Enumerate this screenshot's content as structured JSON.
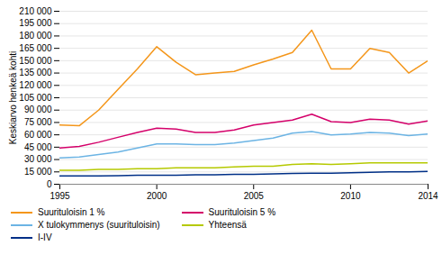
{
  "chart_data": {
    "type": "line",
    "x": [
      1995,
      1996,
      1997,
      1998,
      1999,
      2000,
      2001,
      2002,
      2003,
      2004,
      2005,
      2006,
      2007,
      2008,
      2009,
      2010,
      2011,
      2012,
      2013,
      2014
    ],
    "series": [
      {
        "name": "Suurituloisin 1 %",
        "color": "#F4961A",
        "values": [
          72000,
          71000,
          90000,
          115000,
          140000,
          167000,
          148000,
          133000,
          135000,
          137000,
          145000,
          152000,
          160000,
          187000,
          140000,
          140000,
          165000,
          160000,
          135000,
          150000
        ]
      },
      {
        "name": "Suurituloisin 5 %",
        "color": "#D4006A",
        "values": [
          44000,
          46000,
          51000,
          57000,
          63000,
          68000,
          67000,
          63000,
          63000,
          66000,
          72000,
          75000,
          78000,
          85000,
          76000,
          75000,
          79000,
          78000,
          73000,
          77000
        ]
      },
      {
        "name": "X tulokymmenys (suurituloisin)",
        "color": "#6CB4E4",
        "values": [
          32000,
          33000,
          36000,
          39000,
          44000,
          49000,
          49000,
          48000,
          48000,
          50000,
          53000,
          56000,
          62000,
          64000,
          60000,
          61000,
          63000,
          62000,
          59000,
          61000
        ]
      },
      {
        "name": "Yhteensä",
        "color": "#B5C900",
        "values": [
          17000,
          17000,
          18000,
          18000,
          19000,
          19000,
          20000,
          20000,
          20000,
          21000,
          22000,
          22000,
          24000,
          25000,
          24000,
          25000,
          26000,
          26000,
          26000,
          26000
        ]
      },
      {
        "name": "I-IV",
        "color": "#003087",
        "values": [
          10000,
          10000,
          10000,
          10500,
          11000,
          11000,
          11000,
          11500,
          11500,
          12000,
          12000,
          12500,
          13000,
          13500,
          13500,
          14000,
          14500,
          15000,
          15000,
          15500
        ]
      }
    ],
    "ylabel": "Keskiarvo henkeä kohti",
    "xlim": [
      1995,
      2014
    ],
    "xticks": [
      1995,
      2000,
      2005,
      2010,
      2014
    ],
    "ylim": [
      0,
      210000
    ],
    "yticks": [
      0,
      {
        "value": 15000,
        "label": "15 000"
      },
      {
        "value": 30000,
        "label": "30 000"
      },
      {
        "value": 45000,
        "label": "45 000"
      },
      {
        "value": 60000,
        "label": "60 000"
      },
      {
        "value": 75000,
        "label": "75 000"
      },
      {
        "value": 90000,
        "label": "90 000"
      },
      {
        "value": 105000,
        "label": "105 000"
      },
      {
        "value": 120000,
        "label": "120 000"
      },
      {
        "value": 135000,
        "label": "135 000"
      },
      {
        "value": 150000,
        "label": "150 000"
      },
      {
        "value": 165000,
        "label": "165 000"
      },
      {
        "value": 180000,
        "label": "180 000"
      },
      {
        "value": 195000,
        "label": "195 000"
      },
      {
        "value": 210000,
        "label": "210 000"
      }
    ],
    "grid": true,
    "legend": "bottom"
  }
}
